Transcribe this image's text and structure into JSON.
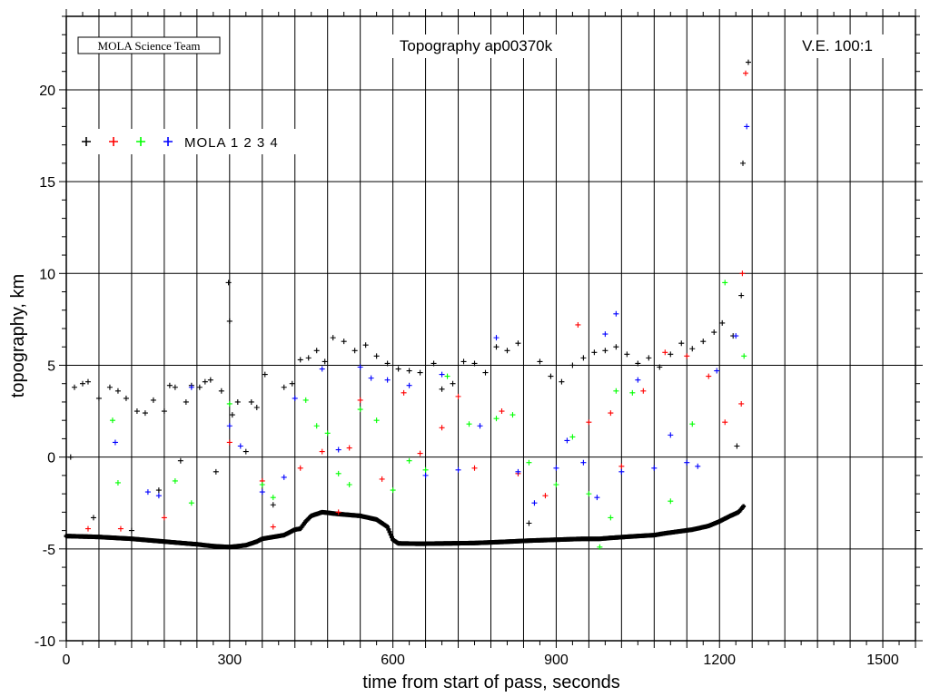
{
  "chart_data": {
    "type": "scatter",
    "title": "Topography ap00370k",
    "credit": "MOLA Science Team",
    "annotation": "V.E. 100:1",
    "xlabel": "time from start of pass, seconds",
    "ylabel": "topography, km",
    "xlim": [
      0,
      1560
    ],
    "ylim": [
      -10,
      24
    ],
    "xticks": [
      0,
      300,
      600,
      900,
      1200,
      1500
    ],
    "yticks": [
      -10,
      -5,
      0,
      5,
      10,
      15,
      20
    ],
    "grid": true,
    "legend": {
      "placement": "top-left",
      "label": "MOLA 1 2 3 4",
      "colors": [
        "#000000",
        "#ff0000",
        "#00ff00",
        "#0000ff"
      ]
    },
    "surface": {
      "name": "MOLA 1",
      "color": "#000000",
      "x": [
        0,
        60,
        120,
        180,
        240,
        270,
        300,
        330,
        350,
        360,
        380,
        400,
        420,
        430,
        440,
        450,
        470,
        500,
        540,
        570,
        590,
        600,
        610,
        650,
        700,
        750,
        800,
        850,
        900,
        950,
        980,
        1000,
        1050,
        1080,
        1100,
        1150,
        1180,
        1200,
        1220,
        1235,
        1245
      ],
      "y": [
        -4.3,
        -4.35,
        -4.45,
        -4.6,
        -4.75,
        -4.85,
        -4.9,
        -4.8,
        -4.6,
        -4.45,
        -4.35,
        -4.25,
        -3.95,
        -3.9,
        -3.5,
        -3.2,
        -3.0,
        -3.1,
        -3.2,
        -3.4,
        -3.8,
        -4.5,
        -4.7,
        -4.72,
        -4.7,
        -4.68,
        -4.62,
        -4.55,
        -4.5,
        -4.45,
        -4.45,
        -4.4,
        -4.3,
        -4.25,
        -4.15,
        -3.95,
        -3.75,
        -3.5,
        -3.2,
        -3.0,
        -2.65
      ]
    },
    "series": [
      {
        "name": "MOLA 1",
        "color": "#000000",
        "points": [
          [
            8,
            0.0
          ],
          [
            15,
            3.8
          ],
          [
            30,
            4.0
          ],
          [
            40,
            4.1
          ],
          [
            50,
            -3.3
          ],
          [
            60,
            3.2
          ],
          [
            80,
            3.8
          ],
          [
            95,
            3.6
          ],
          [
            110,
            3.2
          ],
          [
            120,
            -4.0
          ],
          [
            130,
            2.5
          ],
          [
            145,
            2.4
          ],
          [
            160,
            3.1
          ],
          [
            170,
            -1.8
          ],
          [
            180,
            2.5
          ],
          [
            190,
            3.9
          ],
          [
            200,
            3.8
          ],
          [
            210,
            -0.2
          ],
          [
            220,
            3.0
          ],
          [
            230,
            3.9
          ],
          [
            245,
            3.8
          ],
          [
            255,
            4.1
          ],
          [
            265,
            4.2
          ],
          [
            275,
            -0.8
          ],
          [
            285,
            3.6
          ],
          [
            298,
            9.5
          ],
          [
            300,
            7.4
          ],
          [
            305,
            2.3
          ],
          [
            315,
            3.0
          ],
          [
            330,
            0.3
          ],
          [
            340,
            3.0
          ],
          [
            350,
            2.7
          ],
          [
            365,
            4.5
          ],
          [
            380,
            -2.6
          ],
          [
            400,
            3.8
          ],
          [
            415,
            4.0
          ],
          [
            430,
            5.3
          ],
          [
            445,
            5.4
          ],
          [
            460,
            5.8
          ],
          [
            475,
            5.2
          ],
          [
            490,
            6.5
          ],
          [
            510,
            6.3
          ],
          [
            530,
            5.8
          ],
          [
            550,
            6.1
          ],
          [
            570,
            5.5
          ],
          [
            590,
            5.1
          ],
          [
            610,
            4.8
          ],
          [
            630,
            4.7
          ],
          [
            650,
            4.6
          ],
          [
            675,
            5.1
          ],
          [
            690,
            3.7
          ],
          [
            710,
            4.0
          ],
          [
            730,
            5.2
          ],
          [
            750,
            5.1
          ],
          [
            770,
            4.6
          ],
          [
            790,
            6.0
          ],
          [
            810,
            5.8
          ],
          [
            830,
            6.2
          ],
          [
            850,
            -3.6
          ],
          [
            870,
            5.2
          ],
          [
            890,
            4.4
          ],
          [
            910,
            4.1
          ],
          [
            930,
            5.0
          ],
          [
            950,
            5.4
          ],
          [
            970,
            5.7
          ],
          [
            990,
            5.8
          ],
          [
            1010,
            6.0
          ],
          [
            1030,
            5.6
          ],
          [
            1050,
            5.1
          ],
          [
            1070,
            5.4
          ],
          [
            1090,
            4.9
          ],
          [
            1110,
            5.6
          ],
          [
            1130,
            6.2
          ],
          [
            1150,
            5.9
          ],
          [
            1170,
            6.3
          ],
          [
            1190,
            6.8
          ],
          [
            1205,
            7.3
          ],
          [
            1225,
            6.6
          ],
          [
            1232,
            0.6
          ],
          [
            1240,
            8.8
          ],
          [
            1243,
            16.0
          ],
          [
            1253,
            21.5
          ]
        ]
      },
      {
        "name": "MOLA 2",
        "color": "#ff0000",
        "points": [
          [
            40,
            -3.9
          ],
          [
            100,
            -3.9
          ],
          [
            180,
            -3.3
          ],
          [
            300,
            0.8
          ],
          [
            360,
            -1.3
          ],
          [
            380,
            -3.8
          ],
          [
            430,
            -0.6
          ],
          [
            470,
            0.3
          ],
          [
            500,
            -3.0
          ],
          [
            520,
            0.5
          ],
          [
            540,
            3.1
          ],
          [
            580,
            -1.2
          ],
          [
            620,
            3.5
          ],
          [
            650,
            0.2
          ],
          [
            690,
            1.6
          ],
          [
            720,
            3.3
          ],
          [
            750,
            -0.6
          ],
          [
            800,
            2.5
          ],
          [
            830,
            -0.9
          ],
          [
            880,
            -2.1
          ],
          [
            940,
            7.2
          ],
          [
            960,
            1.9
          ],
          [
            1000,
            2.4
          ],
          [
            1020,
            -0.5
          ],
          [
            1060,
            3.6
          ],
          [
            1100,
            5.7
          ],
          [
            1140,
            5.5
          ],
          [
            1180,
            4.4
          ],
          [
            1210,
            1.9
          ],
          [
            1240,
            2.9
          ],
          [
            1242,
            10.0
          ],
          [
            1248,
            20.9
          ]
        ]
      },
      {
        "name": "MOLA 3",
        "color": "#00ff00",
        "points": [
          [
            85,
            2.0
          ],
          [
            95,
            -1.4
          ],
          [
            200,
            -1.3
          ],
          [
            230,
            -2.5
          ],
          [
            300,
            2.9
          ],
          [
            360,
            -1.5
          ],
          [
            380,
            -2.2
          ],
          [
            440,
            3.1
          ],
          [
            460,
            1.7
          ],
          [
            480,
            1.3
          ],
          [
            500,
            -0.9
          ],
          [
            520,
            -1.5
          ],
          [
            540,
            2.6
          ],
          [
            570,
            2.0
          ],
          [
            600,
            -1.8
          ],
          [
            630,
            -0.2
          ],
          [
            660,
            -0.7
          ],
          [
            700,
            4.4
          ],
          [
            740,
            1.8
          ],
          [
            790,
            2.1
          ],
          [
            820,
            2.3
          ],
          [
            850,
            -0.3
          ],
          [
            900,
            -1.5
          ],
          [
            930,
            1.1
          ],
          [
            960,
            -2.0
          ],
          [
            980,
            -4.9
          ],
          [
            1000,
            -3.3
          ],
          [
            1010,
            3.6
          ],
          [
            1040,
            3.5
          ],
          [
            1110,
            -2.4
          ],
          [
            1150,
            1.8
          ],
          [
            1210,
            9.5
          ],
          [
            1245,
            5.5
          ]
        ]
      },
      {
        "name": "MOLA 4",
        "color": "#0000ff",
        "points": [
          [
            90,
            0.8
          ],
          [
            150,
            -1.9
          ],
          [
            170,
            -2.1
          ],
          [
            230,
            3.8
          ],
          [
            300,
            1.7
          ],
          [
            320,
            0.6
          ],
          [
            360,
            -1.9
          ],
          [
            400,
            -1.1
          ],
          [
            420,
            3.2
          ],
          [
            470,
            4.8
          ],
          [
            500,
            0.4
          ],
          [
            540,
            4.9
          ],
          [
            560,
            4.3
          ],
          [
            590,
            4.2
          ],
          [
            630,
            3.9
          ],
          [
            660,
            -1.0
          ],
          [
            690,
            4.5
          ],
          [
            720,
            -0.7
          ],
          [
            760,
            1.7
          ],
          [
            790,
            6.5
          ],
          [
            830,
            -0.8
          ],
          [
            860,
            -2.5
          ],
          [
            900,
            -0.6
          ],
          [
            920,
            0.9
          ],
          [
            950,
            -0.3
          ],
          [
            975,
            -2.2
          ],
          [
            990,
            6.7
          ],
          [
            1010,
            7.8
          ],
          [
            1020,
            -0.8
          ],
          [
            1050,
            4.2
          ],
          [
            1080,
            -0.6
          ],
          [
            1110,
            1.2
          ],
          [
            1140,
            -0.3
          ],
          [
            1160,
            -0.5
          ],
          [
            1195,
            4.7
          ],
          [
            1230,
            6.6
          ],
          [
            1250,
            18.0
          ]
        ]
      }
    ]
  }
}
